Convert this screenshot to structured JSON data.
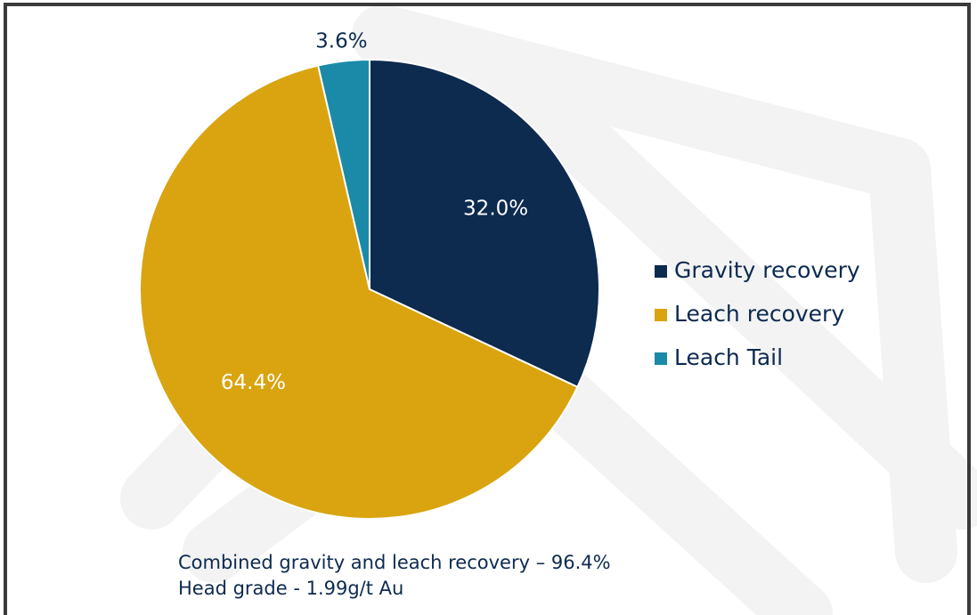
{
  "chart_data": {
    "type": "pie",
    "categories": [
      "Gravity recovery",
      "Leach recovery",
      "Leach Tail"
    ],
    "values": [
      32.0,
      64.4,
      3.6
    ],
    "value_labels": [
      "32.0%",
      "64.4%",
      "3.6%"
    ],
    "colors": [
      "#0d2a4f",
      "#d9a40f",
      "#1a8aa8"
    ],
    "legend": "right",
    "annotations": [
      "Combined gravity and leach recovery – 96.4%",
      "Head grade - 1.99g/t Au"
    ]
  }
}
